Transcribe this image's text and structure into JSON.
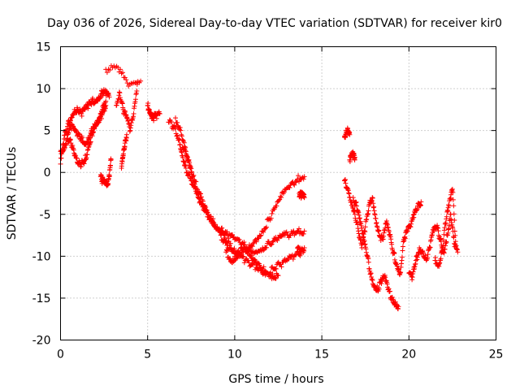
{
  "chart_data": {
    "type": "scatter",
    "title": "Day 036 of 2026, Sidereal Day-to-day VTEC variation (SDTVAR) for receiver kir0",
    "xlabel": "GPS time / hours",
    "ylabel": "SDTVAR / TECUs",
    "xlim": [
      0,
      25
    ],
    "ylim": [
      -20,
      15
    ],
    "xticks": [
      0,
      5,
      10,
      15,
      20,
      25
    ],
    "yticks": [
      -20,
      -15,
      -10,
      -5,
      0,
      5,
      10,
      15
    ],
    "xtick_labels": [
      "0",
      "5",
      "10",
      "15",
      "20",
      "25"
    ],
    "ytick_labels": [
      "-20",
      "-15",
      "-10",
      "-5",
      "0",
      "5",
      "10",
      "15"
    ],
    "grid": true,
    "marker": "+",
    "color": "#ff0000",
    "series": [
      {
        "name": "s1",
        "x": [
          0.0,
          0.2,
          0.4,
          0.6,
          0.8,
          1.0,
          1.2,
          1.4,
          1.6,
          1.8,
          2.0,
          2.2,
          2.4,
          2.6,
          2.8
        ],
        "y": [
          1.0,
          4.0,
          5.5,
          6.5,
          7.5,
          7.5,
          7.0,
          7.5,
          8.0,
          8.5,
          8.5,
          9.0,
          9.5,
          9.5,
          9.0
        ]
      },
      {
        "name": "s2",
        "x": [
          0.0,
          0.2,
          0.4,
          0.6,
          0.8,
          1.0,
          1.2,
          1.4,
          1.6,
          1.8,
          2.0,
          2.2,
          2.4,
          2.6
        ],
        "y": [
          2.5,
          3.0,
          4.0,
          3.5,
          2.0,
          1.0,
          1.0,
          1.5,
          3.0,
          4.5,
          5.5,
          6.0,
          7.5,
          8.5
        ]
      },
      {
        "name": "s3",
        "x": [
          0.4,
          0.6,
          0.8,
          1.0,
          1.2,
          1.4,
          1.6,
          1.8,
          2.0,
          2.2,
          2.4,
          2.6
        ],
        "y": [
          4.5,
          5.5,
          5.0,
          4.5,
          4.0,
          3.5,
          4.0,
          5.0,
          5.5,
          6.0,
          7.0,
          8.0
        ]
      },
      {
        "name": "s4",
        "x": [
          2.3,
          2.4,
          2.5,
          2.6,
          2.7,
          2.8,
          2.9
        ],
        "y": [
          -0.5,
          -1.0,
          -0.8,
          -1.2,
          -1.5,
          -0.5,
          1.5
        ]
      },
      {
        "name": "s5",
        "x": [
          3.2,
          3.4,
          3.6,
          3.8,
          4.0,
          4.2,
          4.4
        ],
        "y": [
          8.0,
          9.5,
          7.5,
          6.5,
          5.0,
          7.0,
          10.5
        ]
      },
      {
        "name": "s6",
        "x": [
          3.5,
          3.6,
          3.7,
          3.8
        ],
        "y": [
          0.5,
          2.0,
          3.5,
          4.5
        ]
      },
      {
        "name": "s7",
        "x": [
          5.0,
          5.1,
          5.2,
          5.3,
          5.5,
          5.7
        ],
        "y": [
          8.0,
          7.5,
          7.0,
          6.5,
          6.8,
          7.0
        ]
      },
      {
        "name": "s8",
        "x": [
          2.6,
          3.3,
          3.9,
          4.6
        ],
        "y": [
          12.3,
          12.5,
          10.3,
          10.9
        ]
      },
      {
        "name": "s9",
        "x": [
          6.2,
          6.5,
          6.8,
          7.0,
          7.2,
          7.5,
          7.8,
          8.0,
          8.3,
          8.6,
          9.0,
          9.3,
          9.6,
          10.0,
          10.4,
          10.8,
          11.2,
          11.6,
          12.0,
          12.4,
          12.8,
          13.2,
          13.6,
          14.0
        ],
        "y": [
          6.0,
          5.5,
          4.0,
          2.0,
          0.5,
          -1.0,
          -2.5,
          -3.5,
          -4.5,
          -5.5,
          -6.5,
          -7.0,
          -7.5,
          -8.0,
          -8.5,
          -9.0,
          -9.5,
          -9.0,
          -8.5,
          -8.0,
          -7.5,
          -7.5,
          -7.0,
          -7.0
        ]
      },
      {
        "name": "s10",
        "x": [
          6.6,
          6.9,
          7.2,
          7.5,
          7.8,
          8.2,
          8.6,
          9.0,
          9.4,
          9.8,
          10.2,
          10.6,
          11.0,
          11.4,
          11.8,
          12.2,
          12.6,
          13.0,
          13.4,
          13.8
        ],
        "y": [
          6.5,
          5.0,
          2.5,
          0.0,
          -2.5,
          -4.0,
          -5.5,
          -6.5,
          -7.5,
          -9.0,
          -10.0,
          -10.5,
          -11.0,
          -11.5,
          -12.0,
          -11.5,
          -11.0,
          -10.5,
          -10.0,
          -9.5
        ]
      },
      {
        "name": "s11",
        "x": [
          7.0,
          7.3,
          7.6,
          8.0,
          8.4,
          8.8,
          9.2,
          9.6,
          10.0,
          10.4,
          10.8,
          11.2,
          11.6,
          12.0,
          12.4,
          12.8,
          13.2,
          13.6,
          14.0
        ],
        "y": [
          3.0,
          1.5,
          -0.5,
          -2.5,
          -4.5,
          -6.0,
          -7.5,
          -9.0,
          -10.0,
          -9.5,
          -9.0,
          -8.0,
          -7.0,
          -5.5,
          -4.0,
          -2.5,
          -1.5,
          -0.8,
          -0.5
        ]
      },
      {
        "name": "s12",
        "x": [
          9.5,
          9.8,
          10.1,
          10.4,
          10.7,
          11.0,
          11.3,
          11.6,
          11.9,
          12.2,
          12.5
        ],
        "y": [
          -9.5,
          -10.5,
          -10.0,
          -9.0,
          -9.5,
          -10.5,
          -11.0,
          -11.5,
          -12.0,
          -12.5,
          -12.3
        ]
      },
      {
        "name": "s13",
        "x": [
          13.7,
          13.8,
          13.9,
          14.0
        ],
        "y": [
          -2.5,
          -2.7,
          -2.8,
          -3.0
        ]
      },
      {
        "name": "s14",
        "x": [
          13.6,
          13.8,
          14.0
        ],
        "y": [
          -9.0,
          -9.5,
          -9.0
        ]
      },
      {
        "name": "s15",
        "x": [
          16.3,
          16.4,
          16.5,
          16.6
        ],
        "y": [
          4.3,
          4.8,
          5.0,
          4.5
        ]
      },
      {
        "name": "s16",
        "x": [
          16.6,
          16.7,
          16.8,
          16.9
        ],
        "y": [
          1.5,
          2.0,
          2.2,
          1.8
        ]
      },
      {
        "name": "s17",
        "x": [
          16.3,
          16.5,
          16.7,
          16.9,
          17.1,
          17.3,
          17.5,
          17.7,
          17.9,
          18.1,
          18.3,
          18.5,
          18.7,
          18.9,
          19.1,
          19.3,
          19.5,
          19.7,
          19.9,
          20.1,
          20.3,
          20.5,
          20.7
        ],
        "y": [
          -1.0,
          -2.0,
          -3.5,
          -5.0,
          -7.0,
          -9.0,
          -6.5,
          -4.0,
          -3.0,
          -5.5,
          -7.5,
          -8.0,
          -6.0,
          -7.5,
          -9.5,
          -11.0,
          -12.0,
          -8.0,
          -7.0,
          -6.5,
          -5.0,
          -4.0,
          -3.5
        ]
      },
      {
        "name": "s18",
        "x": [
          16.8,
          17.0,
          17.2,
          17.4,
          17.6,
          17.8,
          18.0,
          18.2,
          18.4,
          18.6,
          18.8,
          19.0,
          19.2,
          19.4
        ],
        "y": [
          -3.0,
          -4.0,
          -6.0,
          -8.0,
          -10.0,
          -12.0,
          -13.5,
          -14.0,
          -13.0,
          -12.5,
          -14.0,
          -15.0,
          -15.5,
          -16.0
        ]
      },
      {
        "name": "s19",
        "x": [
          20.0,
          20.2,
          20.4,
          20.6,
          20.8,
          21.0,
          21.2,
          21.4,
          21.6,
          21.8,
          22.0,
          22.2,
          22.4,
          22.6,
          22.8
        ],
        "y": [
          -12.0,
          -12.5,
          -10.5,
          -9.0,
          -9.5,
          -10.5,
          -9.0,
          -7.0,
          -6.5,
          -8.0,
          -9.5,
          -7.5,
          -5.0,
          -8.5,
          -9.5
        ]
      },
      {
        "name": "s20",
        "x": [
          21.5,
          21.7,
          21.9,
          22.1,
          22.3,
          22.5,
          22.7
        ],
        "y": [
          -10.5,
          -11.0,
          -9.5,
          -6.0,
          -4.0,
          -2.0,
          -9.0
        ]
      }
    ]
  }
}
